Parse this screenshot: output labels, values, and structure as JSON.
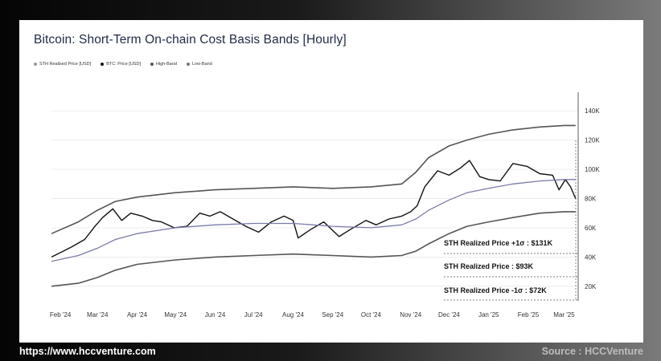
{
  "chart_data": {
    "type": "line",
    "title": "Bitcoin: Short-Term On-chain Cost Basis Bands [Hourly]",
    "legend": [
      "STH Realised Price [USD]",
      "BTC: Price [USD]",
      "High-Band",
      "Low-Band"
    ],
    "x_tick_labels": [
      "Feb '24",
      "Mar '24",
      "Apr '24",
      "May '24",
      "Jun '24",
      "Jul '24",
      "Aug '24",
      "Sep '24",
      "Oct '24",
      "Nov '24",
      "Dec '24",
      "Jan '25",
      "Feb '25",
      "Mar '25"
    ],
    "y_tick_labels": [
      "20K",
      "40K",
      "60K",
      "80K",
      "100K",
      "120K",
      "140K"
    ],
    "y_ticks": [
      20000,
      40000,
      60000,
      80000,
      100000,
      120000,
      140000
    ],
    "ylim": [
      10000,
      150000
    ],
    "x_range": [
      "2024-01-25",
      "2025-03-12"
    ],
    "grid": true,
    "legend_position": "top-left",
    "series": [
      {
        "name": "BTC: Price [USD]",
        "color": "#111111",
        "x": [
          "2024-01-25",
          "2024-02-01",
          "2024-02-10",
          "2024-02-20",
          "2024-02-28",
          "2024-03-05",
          "2024-03-13",
          "2024-03-20",
          "2024-03-27",
          "2024-04-05",
          "2024-04-13",
          "2024-04-20",
          "2024-04-30",
          "2024-05-10",
          "2024-05-20",
          "2024-05-28",
          "2024-06-05",
          "2024-06-15",
          "2024-06-25",
          "2024-07-05",
          "2024-07-15",
          "2024-07-25",
          "2024-08-01",
          "2024-08-05",
          "2024-08-15",
          "2024-08-25",
          "2024-09-06",
          "2024-09-15",
          "2024-09-27",
          "2024-10-05",
          "2024-10-15",
          "2024-10-25",
          "2024-11-01",
          "2024-11-06",
          "2024-11-12",
          "2024-11-22",
          "2024-12-01",
          "2024-12-10",
          "2024-12-17",
          "2024-12-25",
          "2025-01-01",
          "2025-01-10",
          "2025-01-20",
          "2025-01-31",
          "2025-02-10",
          "2025-02-20",
          "2025-02-25",
          "2025-03-02",
          "2025-03-06",
          "2025-03-10"
        ],
        "values": [
          40000,
          43000,
          47000,
          52000,
          61000,
          67000,
          73000,
          65000,
          70000,
          68000,
          65000,
          64000,
          60000,
          61000,
          70000,
          68000,
          71000,
          66000,
          61000,
          57000,
          64000,
          68000,
          65000,
          53000,
          59000,
          64000,
          54000,
          59000,
          65000,
          62000,
          66000,
          68000,
          71000,
          75000,
          88000,
          99000,
          96000,
          101000,
          106000,
          95000,
          93000,
          92000,
          104000,
          102000,
          97000,
          96000,
          86000,
          93000,
          88000,
          80000
        ]
      },
      {
        "name": "STH Realised Price [USD]",
        "color": "#7a7ba8",
        "x": [
          "2024-01-25",
          "2024-02-15",
          "2024-03-01",
          "2024-03-15",
          "2024-04-01",
          "2024-05-01",
          "2024-06-01",
          "2024-07-01",
          "2024-08-01",
          "2024-09-01",
          "2024-10-01",
          "2024-10-25",
          "2024-11-05",
          "2024-11-15",
          "2024-12-01",
          "2024-12-15",
          "2025-01-01",
          "2025-01-20",
          "2025-02-10",
          "2025-03-01",
          "2025-03-10"
        ],
        "values": [
          37000,
          41000,
          46000,
          52000,
          56000,
          60000,
          62000,
          63000,
          63000,
          61000,
          60000,
          62000,
          66000,
          72000,
          79000,
          84000,
          87000,
          90000,
          92000,
          93000,
          93000
        ]
      },
      {
        "name": "High-Band",
        "color": "#555555",
        "x": [
          "2024-01-25",
          "2024-02-15",
          "2024-03-01",
          "2024-03-15",
          "2024-04-01",
          "2024-05-01",
          "2024-06-01",
          "2024-07-01",
          "2024-08-01",
          "2024-09-01",
          "2024-10-01",
          "2024-10-25",
          "2024-11-05",
          "2024-11-15",
          "2024-12-01",
          "2024-12-15",
          "2025-01-01",
          "2025-01-20",
          "2025-02-10",
          "2025-03-01",
          "2025-03-10"
        ],
        "values": [
          56000,
          64000,
          72000,
          78000,
          81000,
          84000,
          86000,
          87000,
          88000,
          87000,
          88000,
          90000,
          98000,
          108000,
          116000,
          120000,
          124000,
          127000,
          129000,
          130000,
          130000
        ]
      },
      {
        "name": "Low-Band",
        "color": "#555555",
        "x": [
          "2024-01-25",
          "2024-02-15",
          "2024-03-01",
          "2024-03-15",
          "2024-04-01",
          "2024-05-01",
          "2024-06-01",
          "2024-07-01",
          "2024-08-01",
          "2024-09-01",
          "2024-10-01",
          "2024-10-25",
          "2024-11-05",
          "2024-11-15",
          "2024-12-01",
          "2024-12-15",
          "2025-01-01",
          "2025-01-20",
          "2025-02-10",
          "2025-03-01",
          "2025-03-10"
        ],
        "values": [
          20000,
          22000,
          26000,
          31000,
          35000,
          38000,
          40000,
          41000,
          42000,
          41000,
          40000,
          41000,
          44000,
          49000,
          56000,
          61000,
          64000,
          67000,
          70000,
          71000,
          71000
        ]
      }
    ],
    "annotations": [
      {
        "text": "STH Realized Price +1σ : $131K",
        "value": 131000
      },
      {
        "text": "STH Realized Price : $93K",
        "value": 93000
      },
      {
        "text": "STH Realized Price -1σ : $72K",
        "value": 72000
      }
    ]
  },
  "colors": {
    "btc": "#111111",
    "sth": "#7a7ba8",
    "band": "#555555",
    "grid": "#e6e6e6",
    "legend_sth": "#9a9a9a",
    "legend_btc": "#111111",
    "legend_high": "#555555",
    "legend_low": "#777777"
  },
  "footer": {
    "website": "https://www.hccventure.com",
    "source": "Source : HCCVenture"
  }
}
